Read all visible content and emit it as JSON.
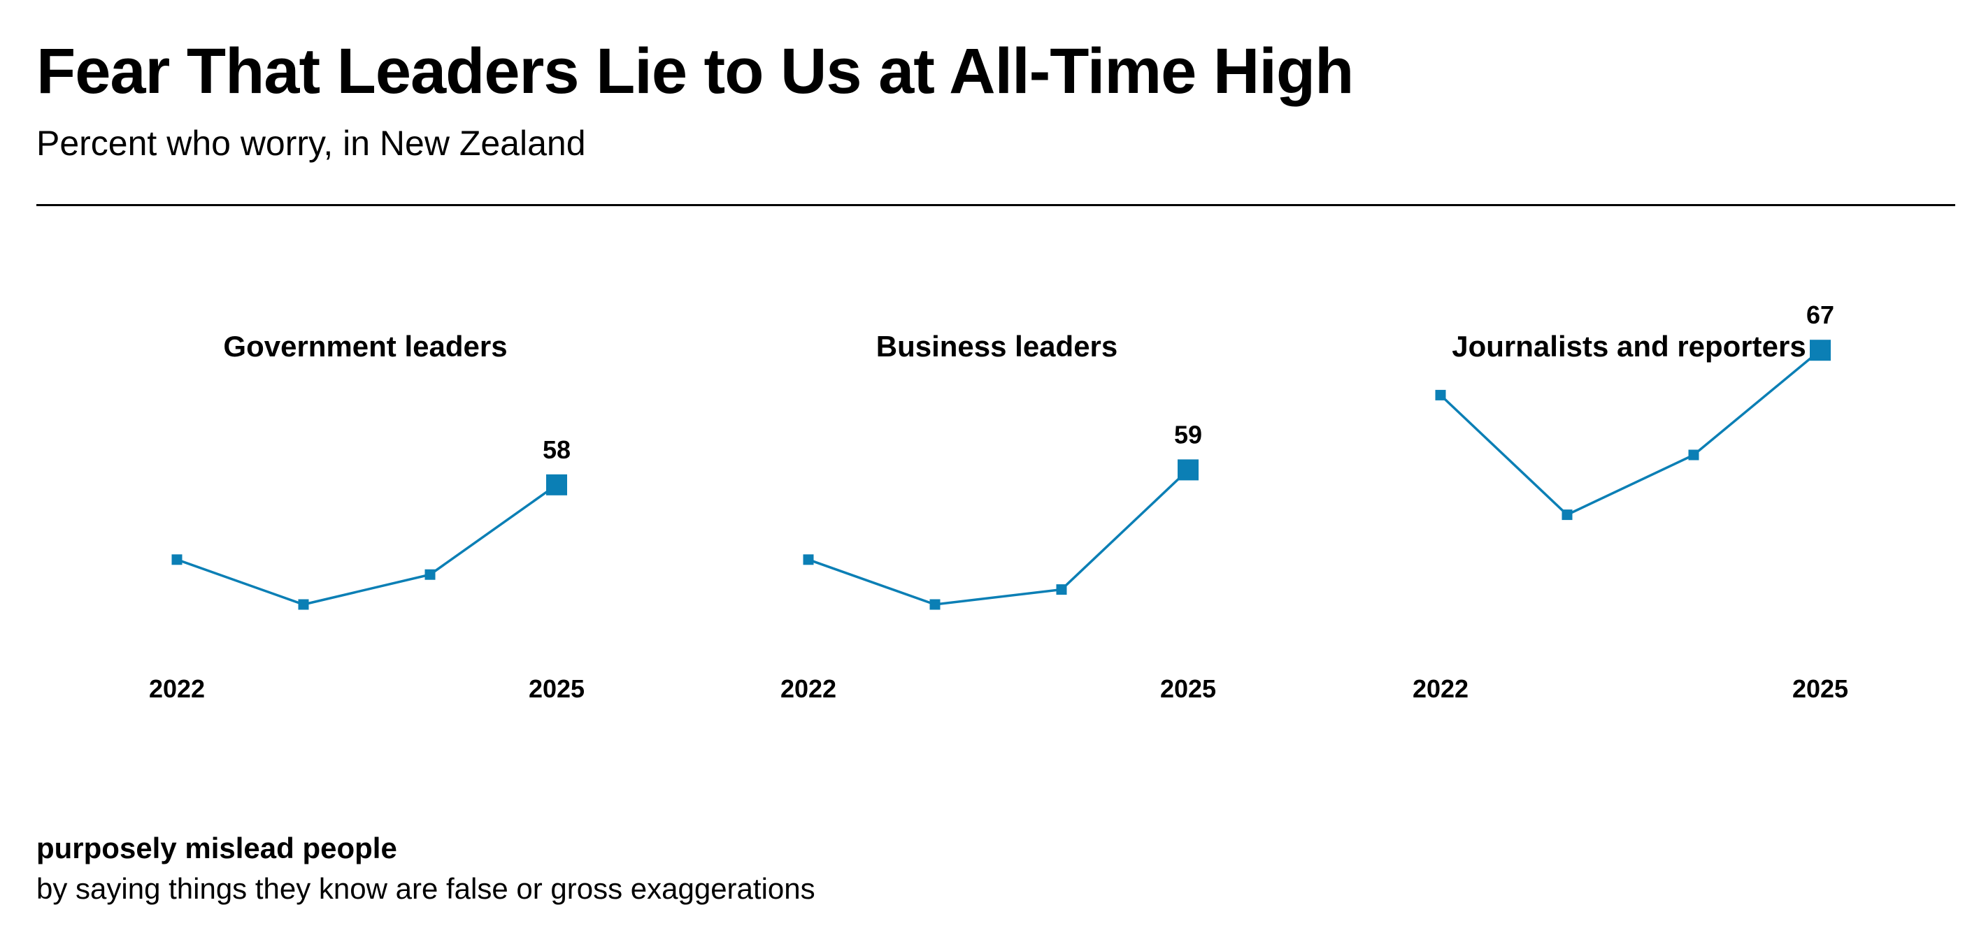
{
  "header": {
    "title": "Fear That Leaders Lie to Us at All-Time High",
    "subtitle": "Percent who worry, in New Zealand"
  },
  "footnote": {
    "bold": "purposely mislead people",
    "text": "by saying things they know are false or gross exaggerations"
  },
  "colors": {
    "series": "#0b7fb5",
    "text": "#000000",
    "rule": "#000000"
  },
  "chart_data": [
    {
      "type": "line",
      "title": "Government leaders",
      "x": [
        2022,
        2023,
        2024,
        2025
      ],
      "tick_labels": [
        "2022",
        "2025"
      ],
      "values": [
        53,
        50,
        52,
        58
      ],
      "end_label": "58",
      "ylim": [
        40,
        75
      ]
    },
    {
      "type": "line",
      "title": "Business leaders",
      "x": [
        2022,
        2023,
        2024,
        2025
      ],
      "tick_labels": [
        "2022",
        "2025"
      ],
      "values": [
        53,
        50,
        51,
        59
      ],
      "end_label": "59",
      "ylim": [
        40,
        75
      ]
    },
    {
      "type": "line",
      "title": "Journalists and reporters",
      "x": [
        2022,
        2023,
        2024,
        2025
      ],
      "tick_labels": [
        "2022",
        "2025"
      ],
      "values": [
        64,
        56,
        60,
        67
      ],
      "end_label": "67",
      "ylim": [
        40,
        75
      ]
    }
  ]
}
